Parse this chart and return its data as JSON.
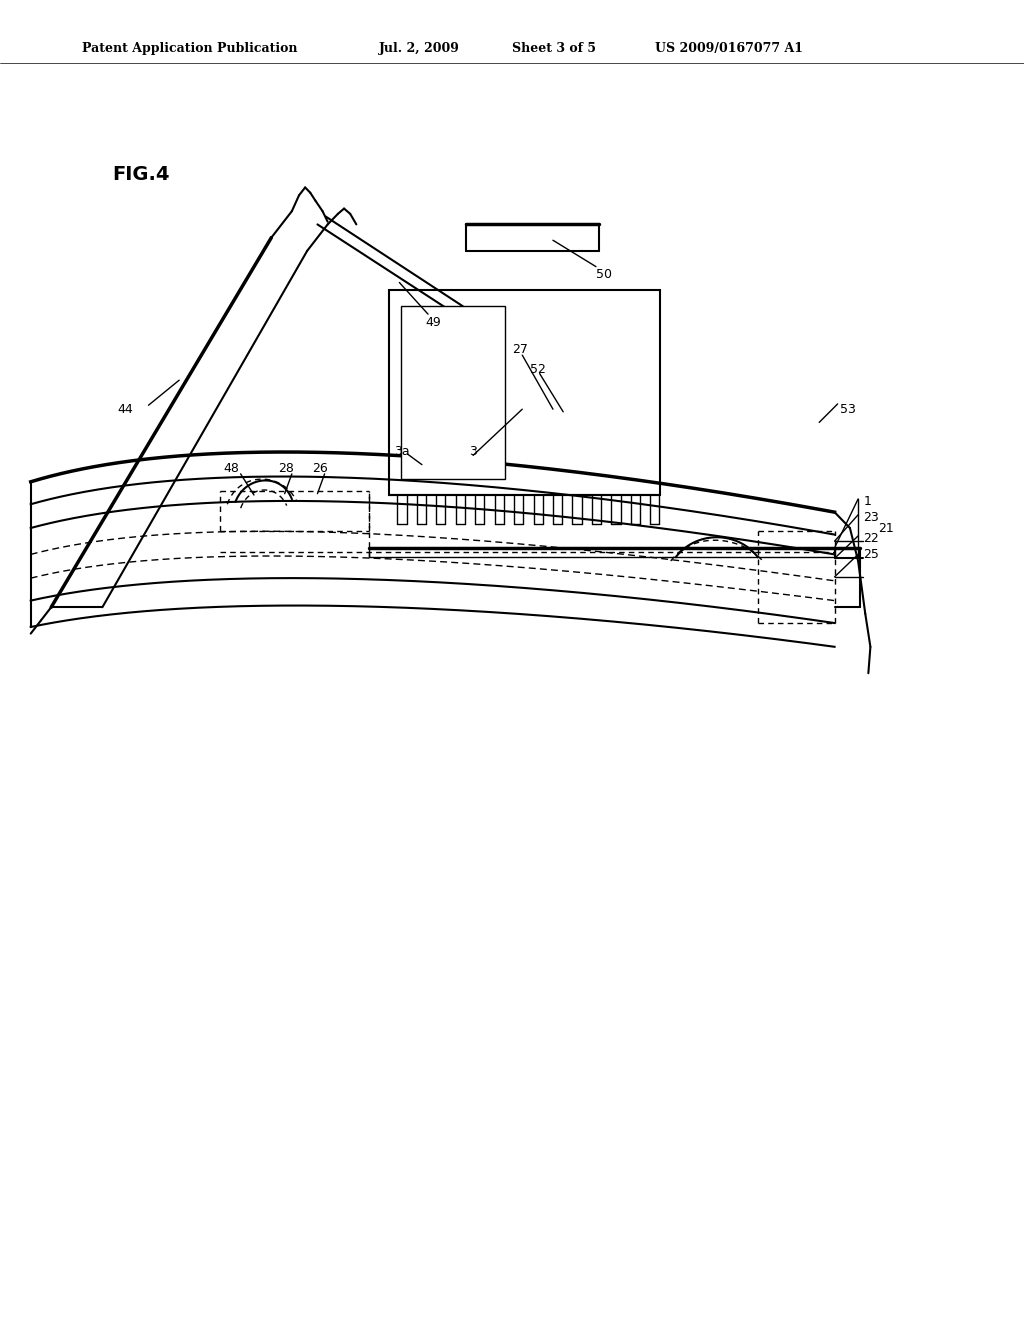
{
  "background_color": "#ffffff",
  "title_text": "Patent Application Publication",
  "title_date": "Jul. 2, 2009",
  "title_sheet": "Sheet 3 of 5",
  "title_patent": "US 2009/0167077 A1",
  "fig_label": "FIG.4",
  "lw": 1.5,
  "lw_thick": 2.5,
  "lw_thin": 1.0
}
